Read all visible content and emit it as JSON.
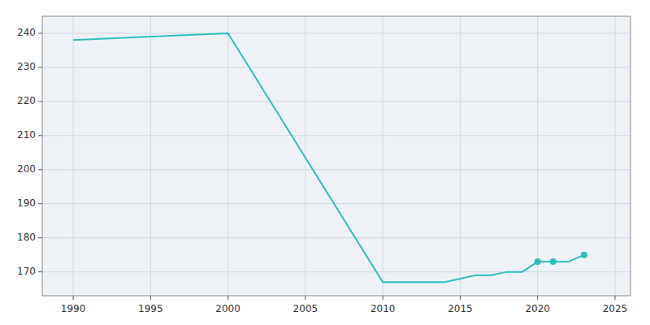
{
  "chart_data": {
    "type": "line",
    "x": [
      1990,
      2000,
      2010,
      2011,
      2012,
      2013,
      2014,
      2015,
      2016,
      2017,
      2018,
      2019,
      2020,
      2021,
      2022,
      2023
    ],
    "series": [
      {
        "color": "#2abfbf",
        "values": [
          238,
          240,
          167,
          167,
          167,
          167,
          167,
          168,
          169,
          169,
          170,
          170,
          173,
          173,
          173,
          175
        ]
      },
      {
        "type": "scatter",
        "color": "#2abfbf",
        "marker": "circle",
        "x": [
          2020,
          2021,
          2023
        ],
        "values": [
          173,
          173,
          175
        ]
      }
    ],
    "xlim": [
      1988,
      2026
    ],
    "xticks": [
      1990,
      1995,
      2000,
      2005,
      2010,
      2015,
      2020,
      2025
    ],
    "ylim": [
      163,
      245
    ],
    "yticks": [
      170,
      180,
      190,
      200,
      210,
      220,
      230,
      240
    ],
    "grid": true
  }
}
